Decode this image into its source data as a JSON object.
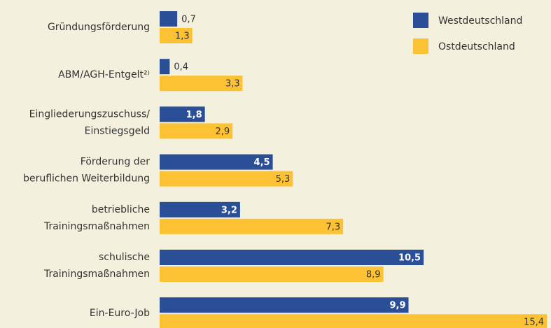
{
  "chart_data": {
    "type": "hbar",
    "categories": [
      "Gründungsförderung",
      "ABM/AGH-Entgelt²⁾",
      "Eingliederungszuschuss/\nEinstiegsgeld",
      "Förderung der\nberuflichen Weiterbildung",
      "betriebliche\nTrainingsmaßnahmen",
      "schulische\nTrainingsmaßnahmen",
      "Ein-Euro-Job"
    ],
    "series": [
      {
        "name": "Westdeutschland",
        "color": "#2b4f97",
        "values": [
          0.7,
          0.4,
          1.8,
          4.5,
          3.2,
          10.5,
          9.9
        ],
        "value_labels": [
          "0,7",
          "0,4",
          "1,8",
          "4,5",
          "3,2",
          "10,5",
          "9,9"
        ]
      },
      {
        "name": "Ostdeutschland",
        "color": "#fdc234",
        "values": [
          1.3,
          3.3,
          2.9,
          5.3,
          7.3,
          8.9,
          15.4
        ],
        "value_labels": [
          "1,3",
          "3,3",
          "2,9",
          "5,3",
          "7,3",
          "8,9",
          "15,4"
        ]
      }
    ],
    "legend": "top-right"
  }
}
